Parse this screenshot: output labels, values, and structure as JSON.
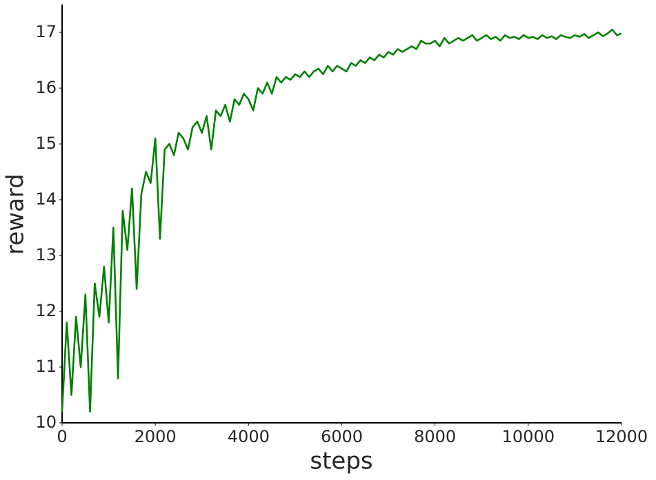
{
  "chart_data": {
    "type": "line",
    "xlabel": "steps",
    "ylabel": "reward",
    "xlim": [
      0,
      12000
    ],
    "ylim": [
      10,
      17.5
    ],
    "xticks": [
      0,
      2000,
      4000,
      6000,
      8000,
      10000,
      12000
    ],
    "yticks": [
      10,
      11,
      12,
      13,
      14,
      15,
      16,
      17
    ],
    "grid": false,
    "series": [
      {
        "color": "#008000",
        "x": [
          0,
          100,
          200,
          300,
          400,
          500,
          600,
          700,
          800,
          900,
          1000,
          1100,
          1200,
          1300,
          1400,
          1500,
          1600,
          1700,
          1800,
          1900,
          2000,
          2100,
          2200,
          2300,
          2400,
          2500,
          2600,
          2700,
          2800,
          2900,
          3000,
          3100,
          3200,
          3300,
          3400,
          3500,
          3600,
          3700,
          3800,
          3900,
          4000,
          4100,
          4200,
          4300,
          4400,
          4500,
          4600,
          4700,
          4800,
          4900,
          5000,
          5100,
          5200,
          5300,
          5400,
          5500,
          5600,
          5700,
          5800,
          5900,
          6000,
          6100,
          6200,
          6300,
          6400,
          6500,
          6600,
          6700,
          6800,
          6900,
          7000,
          7100,
          7200,
          7300,
          7400,
          7500,
          7600,
          7700,
          7800,
          7900,
          8000,
          8100,
          8200,
          8300,
          8400,
          8500,
          8600,
          8700,
          8800,
          8900,
          9000,
          9100,
          9200,
          9300,
          9400,
          9500,
          9600,
          9700,
          9800,
          9900,
          10000,
          10100,
          10200,
          10300,
          10400,
          10500,
          10600,
          10700,
          10800,
          10900,
          11000,
          11100,
          11200,
          11300,
          11400,
          11500,
          11600,
          11700,
          11800,
          11900,
          12000
        ],
        "values": [
          10.2,
          11.8,
          10.5,
          11.9,
          11.0,
          12.3,
          10.2,
          12.5,
          11.9,
          12.8,
          11.8,
          13.5,
          10.8,
          13.8,
          13.1,
          14.2,
          12.4,
          14.1,
          14.5,
          14.3,
          15.1,
          13.3,
          14.9,
          15.0,
          14.8,
          15.2,
          15.1,
          14.9,
          15.3,
          15.4,
          15.2,
          15.5,
          14.9,
          15.6,
          15.5,
          15.7,
          15.4,
          15.8,
          15.7,
          15.9,
          15.8,
          15.6,
          16.0,
          15.9,
          16.1,
          15.9,
          16.2,
          16.1,
          16.2,
          16.15,
          16.25,
          16.2,
          16.3,
          16.2,
          16.3,
          16.35,
          16.25,
          16.4,
          16.3,
          16.4,
          16.35,
          16.3,
          16.45,
          16.4,
          16.5,
          16.45,
          16.55,
          16.5,
          16.6,
          16.55,
          16.65,
          16.6,
          16.7,
          16.65,
          16.7,
          16.75,
          16.7,
          16.85,
          16.8,
          16.8,
          16.85,
          16.75,
          16.9,
          16.8,
          16.85,
          16.9,
          16.85,
          16.9,
          16.95,
          16.85,
          16.9,
          16.95,
          16.88,
          16.92,
          16.85,
          16.95,
          16.9,
          16.92,
          16.88,
          16.95,
          16.9,
          16.92,
          16.88,
          16.95,
          16.9,
          16.93,
          16.88,
          16.95,
          16.92,
          16.9,
          16.95,
          16.92,
          16.97,
          16.9,
          16.95,
          17.0,
          16.93,
          16.98,
          17.05,
          16.95,
          16.98
        ]
      }
    ]
  }
}
